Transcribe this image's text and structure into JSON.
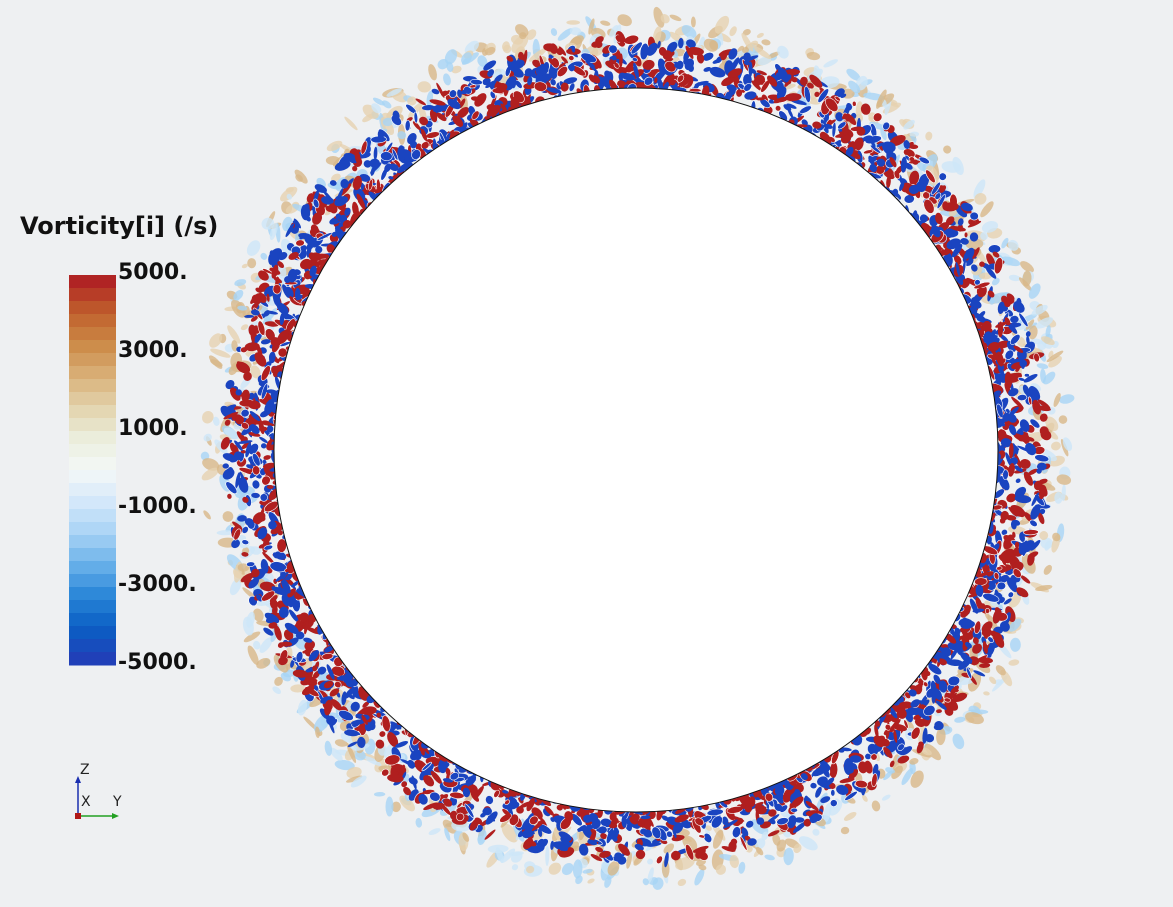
{
  "colorbar": {
    "title": "Vorticity[i] (/s)",
    "range": [
      -5000,
      5000
    ],
    "ticks": [
      {
        "value": 5000,
        "label": "5000."
      },
      {
        "value": 3000,
        "label": "3000."
      },
      {
        "value": 1000,
        "label": "1000."
      },
      {
        "value": -1000,
        "label": "-1000."
      },
      {
        "value": -3000,
        "label": "-3000."
      },
      {
        "value": -5000,
        "label": "-5000."
      }
    ],
    "colors": [
      "#b02424",
      "#c0602c",
      "#cc8a48",
      "#d9b078",
      "#e3d3ac",
      "#ebeedd",
      "#f4f8f8",
      "#d5e8fa",
      "#a9d3f5",
      "#6ab2ea",
      "#2a86d8",
      "#0a5fc4",
      "#2040b8"
    ]
  },
  "axes": {
    "z": "Z",
    "x": "X",
    "y": "Y"
  }
}
